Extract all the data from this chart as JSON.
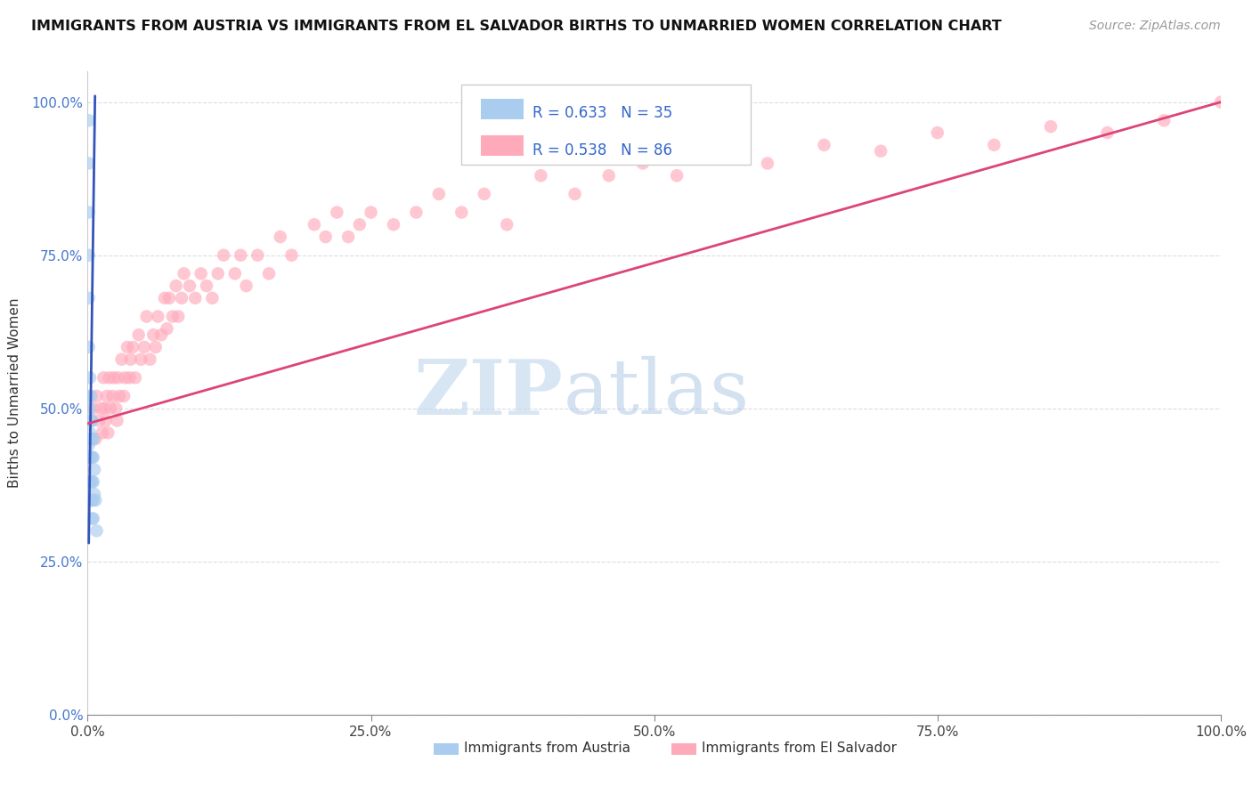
{
  "title": "IMMIGRANTS FROM AUSTRIA VS IMMIGRANTS FROM EL SALVADOR BIRTHS TO UNMARRIED WOMEN CORRELATION CHART",
  "source": "Source: ZipAtlas.com",
  "ylabel": "Births to Unmarried Women",
  "watermark_zip": "ZIP",
  "watermark_atlas": "atlas",
  "austria_R": 0.633,
  "austria_N": 35,
  "elsalvador_R": 0.538,
  "elsalvador_N": 86,
  "blue_color": "#AACCEE",
  "pink_color": "#FFAABB",
  "blue_line_color": "#3355BB",
  "pink_line_color": "#DD4477",
  "background_color": "#ffffff",
  "grid_color": "#dddddd",
  "austria_x": [
    0.001,
    0.001,
    0.001,
    0.001,
    0.001,
    0.001,
    0.001,
    0.001,
    0.002,
    0.002,
    0.002,
    0.002,
    0.002,
    0.002,
    0.003,
    0.003,
    0.003,
    0.003,
    0.003,
    0.003,
    0.004,
    0.004,
    0.004,
    0.004,
    0.004,
    0.004,
    0.005,
    0.005,
    0.005,
    0.005,
    0.005,
    0.006,
    0.006,
    0.007,
    0.008
  ],
  "austria_y": [
    0.97,
    0.9,
    0.82,
    0.75,
    0.68,
    0.6,
    0.52,
    0.44,
    0.55,
    0.5,
    0.46,
    0.42,
    0.38,
    0.35,
    0.52,
    0.48,
    0.45,
    0.42,
    0.38,
    0.35,
    0.48,
    0.45,
    0.42,
    0.38,
    0.35,
    0.32,
    0.45,
    0.42,
    0.38,
    0.35,
    0.32,
    0.4,
    0.36,
    0.35,
    0.3
  ],
  "elsalvador_x": [
    0.003,
    0.005,
    0.007,
    0.008,
    0.01,
    0.012,
    0.013,
    0.014,
    0.015,
    0.016,
    0.017,
    0.018,
    0.019,
    0.02,
    0.022,
    0.023,
    0.025,
    0.026,
    0.027,
    0.028,
    0.03,
    0.032,
    0.033,
    0.035,
    0.037,
    0.038,
    0.04,
    0.042,
    0.045,
    0.047,
    0.05,
    0.052,
    0.055,
    0.058,
    0.06,
    0.062,
    0.065,
    0.068,
    0.07,
    0.072,
    0.075,
    0.078,
    0.08,
    0.083,
    0.085,
    0.09,
    0.095,
    0.1,
    0.105,
    0.11,
    0.115,
    0.12,
    0.13,
    0.135,
    0.14,
    0.15,
    0.16,
    0.17,
    0.18,
    0.2,
    0.21,
    0.22,
    0.23,
    0.24,
    0.25,
    0.27,
    0.29,
    0.31,
    0.33,
    0.35,
    0.37,
    0.4,
    0.43,
    0.46,
    0.49,
    0.52,
    0.56,
    0.6,
    0.65,
    0.7,
    0.75,
    0.8,
    0.85,
    0.9,
    0.95,
    1.0
  ],
  "elsalvador_y": [
    0.48,
    0.5,
    0.45,
    0.52,
    0.48,
    0.5,
    0.46,
    0.55,
    0.5,
    0.48,
    0.52,
    0.46,
    0.55,
    0.5,
    0.52,
    0.55,
    0.5,
    0.48,
    0.55,
    0.52,
    0.58,
    0.52,
    0.55,
    0.6,
    0.55,
    0.58,
    0.6,
    0.55,
    0.62,
    0.58,
    0.6,
    0.65,
    0.58,
    0.62,
    0.6,
    0.65,
    0.62,
    0.68,
    0.63,
    0.68,
    0.65,
    0.7,
    0.65,
    0.68,
    0.72,
    0.7,
    0.68,
    0.72,
    0.7,
    0.68,
    0.72,
    0.75,
    0.72,
    0.75,
    0.7,
    0.75,
    0.72,
    0.78,
    0.75,
    0.8,
    0.78,
    0.82,
    0.78,
    0.8,
    0.82,
    0.8,
    0.82,
    0.85,
    0.82,
    0.85,
    0.8,
    0.88,
    0.85,
    0.88,
    0.9,
    0.88,
    0.92,
    0.9,
    0.93,
    0.92,
    0.95,
    0.93,
    0.96,
    0.95,
    0.97,
    1.0
  ],
  "blue_line_x": [
    0.001,
    0.0065
  ],
  "blue_line_y": [
    0.28,
    1.01
  ],
  "pink_line_x": [
    0.0,
    1.0
  ],
  "pink_line_y": [
    0.475,
    1.0
  ],
  "xlim": [
    0.0,
    1.0
  ],
  "ylim": [
    0.0,
    1.05
  ],
  "yticks": [
    0.0,
    0.25,
    0.5,
    0.75,
    1.0
  ],
  "ytick_labels": [
    "0.0%",
    "25.0%",
    "50.0%",
    "75.0%",
    "100.0%"
  ],
  "xticks": [
    0.0,
    0.25,
    0.5,
    0.75,
    1.0
  ],
  "xtick_labels": [
    "0.0%",
    "25.0%",
    "50.0%",
    "75.0%",
    "100.0%"
  ]
}
